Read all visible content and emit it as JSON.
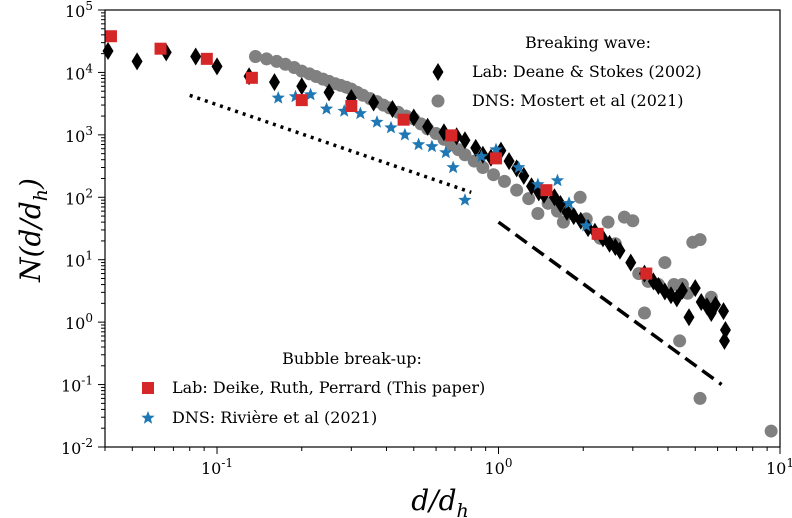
{
  "chart_data": {
    "type": "scatter",
    "xscale": "log",
    "yscale": "log",
    "xlim": [
      0.04,
      10
    ],
    "ylim": [
      0.01,
      100000
    ],
    "xlabel": "d/d_h",
    "ylabel": "N(d/d_h)",
    "x_ticks": [
      {
        "value": 0.1,
        "base": "10",
        "exp": "-1"
      },
      {
        "value": 1,
        "base": "10",
        "exp": "0"
      },
      {
        "value": 10,
        "base": "10",
        "exp": "1"
      }
    ],
    "y_ticks": [
      {
        "value": 0.01,
        "base": "10",
        "exp": "-2"
      },
      {
        "value": 0.1,
        "base": "10",
        "exp": "-1"
      },
      {
        "value": 1,
        "base": "10",
        "exp": "0"
      },
      {
        "value": 10,
        "base": "10",
        "exp": "1"
      },
      {
        "value": 100,
        "base": "10",
        "exp": "2"
      },
      {
        "value": 1000,
        "base": "10",
        "exp": "3"
      },
      {
        "value": 10000,
        "base": "10",
        "exp": "4"
      },
      {
        "value": 100000,
        "base": "10",
        "exp": "5"
      }
    ],
    "legend_groups": [
      {
        "title": "Breaking wave:",
        "placement": "top-right",
        "entries": [
          {
            "label": "Lab: Deane & Stokes (2002)",
            "series": "lab_deane"
          },
          {
            "label": "DNS: Mostert et al (2021)",
            "series": "dns_mostert"
          }
        ]
      },
      {
        "title": "Bubble break-up:",
        "placement": "bottom-left",
        "entries": [
          {
            "label": "Lab: Deike, Ruth, Perrard (This paper)",
            "series": "lab_deike"
          },
          {
            "label": "DNS: Rivière et al (2021)",
            "series": "dns_riviere"
          }
        ]
      }
    ],
    "series": [
      {
        "key": "lab_deane",
        "name": "Lab: Deane & Stokes (2002)",
        "marker": "diamond",
        "color": "#000000",
        "points": [
          [
            0.041,
            22000
          ],
          [
            0.052,
            15000
          ],
          [
            0.066,
            21000
          ],
          [
            0.084,
            18000
          ],
          [
            0.1,
            12500
          ],
          [
            0.13,
            8700
          ],
          [
            0.16,
            7000
          ],
          [
            0.2,
            6000
          ],
          [
            0.25,
            4800
          ],
          [
            0.3,
            3900
          ],
          [
            0.36,
            3300
          ],
          [
            0.42,
            2600
          ],
          [
            0.5,
            1900
          ],
          [
            0.56,
            1350
          ],
          [
            0.64,
            1100
          ],
          [
            0.71,
            950
          ],
          [
            0.76,
            820
          ],
          [
            0.83,
            620
          ],
          [
            0.88,
            480
          ],
          [
            0.94,
            430
          ],
          [
            1.02,
            560
          ],
          [
            1.09,
            380
          ],
          [
            1.16,
            290
          ],
          [
            1.23,
            220
          ],
          [
            1.31,
            150
          ],
          [
            1.39,
            120
          ],
          [
            1.45,
            110
          ],
          [
            1.58,
            100
          ],
          [
            1.66,
            78
          ],
          [
            1.75,
            58
          ],
          [
            1.85,
            50
          ],
          [
            1.96,
            42
          ],
          [
            2.08,
            32
          ],
          [
            2.2,
            28
          ],
          [
            2.35,
            22
          ],
          [
            2.48,
            18
          ],
          [
            2.6,
            16
          ],
          [
            2.7,
            14
          ],
          [
            2.95,
            9
          ],
          [
            3.3,
            6
          ],
          [
            3.55,
            4.5
          ],
          [
            3.7,
            3.8
          ],
          [
            3.9,
            3.1
          ],
          [
            4.1,
            2.7
          ],
          [
            4.3,
            2.4
          ],
          [
            4.5,
            3.2
          ],
          [
            4.75,
            1.2
          ],
          [
            5.0,
            3.5
          ],
          [
            5.25,
            2.1
          ],
          [
            5.5,
            1.8
          ],
          [
            5.7,
            1.4
          ],
          [
            5.9,
            1.9
          ],
          [
            6.3,
            1.5
          ],
          [
            6.4,
            0.75
          ],
          [
            6.35,
            0.5
          ]
        ]
      },
      {
        "key": "dns_mostert",
        "name": "DNS: Mostert et al (2021)",
        "marker": "circle",
        "color": "#808080",
        "points": [
          [
            0.137,
            18000
          ],
          [
            0.15,
            16500
          ],
          [
            0.163,
            15000
          ],
          [
            0.175,
            13500
          ],
          [
            0.188,
            12000
          ],
          [
            0.2,
            10500
          ],
          [
            0.213,
            9500
          ],
          [
            0.225,
            8600
          ],
          [
            0.238,
            7800
          ],
          [
            0.25,
            7200
          ],
          [
            0.263,
            6600
          ],
          [
            0.275,
            6200
          ],
          [
            0.288,
            5800
          ],
          [
            0.3,
            5400
          ],
          [
            0.315,
            4800
          ],
          [
            0.33,
            4300
          ],
          [
            0.35,
            3800
          ],
          [
            0.37,
            3400
          ],
          [
            0.39,
            3000
          ],
          [
            0.41,
            2700
          ],
          [
            0.44,
            2300
          ],
          [
            0.47,
            2000
          ],
          [
            0.5,
            1800
          ],
          [
            0.53,
            1500
          ],
          [
            0.56,
            1250
          ],
          [
            0.6,
            1050
          ],
          [
            0.64,
            850
          ],
          [
            0.68,
            700
          ],
          [
            0.72,
            580
          ],
          [
            0.76,
            480
          ],
          [
            0.82,
            380
          ],
          [
            0.88,
            300
          ],
          [
            0.96,
            230
          ],
          [
            1.05,
            180
          ],
          [
            1.16,
            130
          ],
          [
            1.28,
            95
          ],
          [
            1.38,
            55
          ],
          [
            1.5,
            80
          ],
          [
            1.62,
            60
          ],
          [
            1.7,
            40
          ],
          [
            1.8,
            55
          ],
          [
            1.95,
            100
          ],
          [
            2.05,
            45
          ],
          [
            2.3,
            22
          ],
          [
            2.45,
            40
          ],
          [
            2.6,
            18
          ],
          [
            2.8,
            48
          ],
          [
            3.0,
            42
          ],
          [
            3.15,
            6
          ],
          [
            3.4,
            4.5
          ],
          [
            3.7,
            4.0
          ],
          [
            3.9,
            9
          ],
          [
            4.2,
            4.0
          ],
          [
            4.5,
            4.0
          ],
          [
            4.7,
            2.9
          ],
          [
            4.9,
            19
          ],
          [
            5.2,
            21
          ],
          [
            5.7,
            2.5
          ],
          [
            3.3,
            1.4
          ],
          [
            4.4,
            0.5
          ],
          [
            5.2,
            0.06
          ],
          [
            9.3,
            0.018
          ]
        ]
      },
      {
        "key": "lab_deike",
        "name": "Lab: Deike, Ruth, Perrard (This paper)",
        "marker": "square",
        "color": "#d62728",
        "points": [
          [
            0.042,
            38000
          ],
          [
            0.063,
            24000
          ],
          [
            0.092,
            16500
          ],
          [
            0.133,
            8200
          ],
          [
            0.2,
            3600
          ],
          [
            0.3,
            2900
          ],
          [
            0.46,
            1750
          ],
          [
            0.68,
            980
          ],
          [
            0.98,
            420
          ],
          [
            1.48,
            130
          ],
          [
            2.25,
            26
          ],
          [
            3.35,
            6
          ]
        ]
      },
      {
        "key": "dns_riviere",
        "name": "DNS: Rivière et al (2021)",
        "marker": "star",
        "color": "#1f77b4",
        "points": [
          [
            0.165,
            3900
          ],
          [
            0.19,
            4100
          ],
          [
            0.215,
            4400
          ],
          [
            0.245,
            2600
          ],
          [
            0.283,
            2400
          ],
          [
            0.323,
            2200
          ],
          [
            0.37,
            1600
          ],
          [
            0.415,
            1300
          ],
          [
            0.465,
            1000
          ],
          [
            0.52,
            700
          ],
          [
            0.58,
            650
          ],
          [
            0.65,
            520
          ],
          [
            0.69,
            300
          ],
          [
            0.76,
            90
          ],
          [
            0.87,
            450
          ],
          [
            0.98,
            580
          ],
          [
            1.18,
            300
          ],
          [
            1.38,
            160
          ],
          [
            1.62,
            185
          ],
          [
            1.78,
            80
          ],
          [
            2.05,
            35
          ]
        ]
      }
    ],
    "reference_lines": [
      {
        "style": "dotted",
        "from": [
          0.08,
          4300
        ],
        "to": [
          0.8,
          120
        ]
      },
      {
        "style": "dashed",
        "from": [
          1.0,
          40
        ],
        "to": [
          6.2,
          0.1
        ]
      }
    ]
  }
}
